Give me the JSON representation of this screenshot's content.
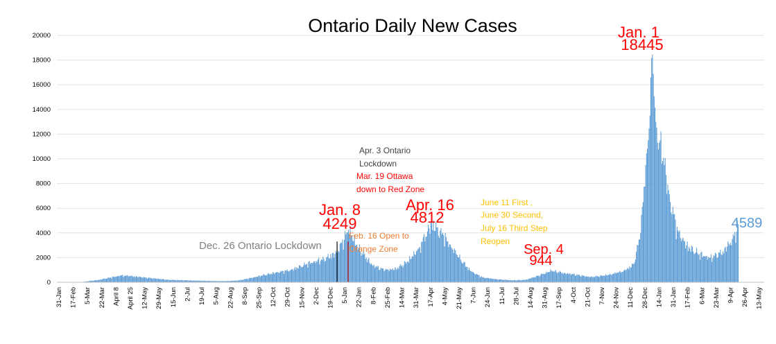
{
  "chart_data": {
    "type": "bar",
    "title": "Ontario Daily New Cases",
    "xlabel": "",
    "ylabel": "",
    "ylim": [
      0,
      20000
    ],
    "y_ticks": [
      0,
      2000,
      4000,
      6000,
      8000,
      10000,
      12000,
      14000,
      16000,
      18000,
      20000
    ],
    "x_tick_labels": [
      "31-Jan",
      "17-Feb",
      "5-Mar",
      "22-Mar",
      "April 8",
      "April 25",
      "12-May",
      "29-May",
      "15-Jun",
      "2-Jul",
      "19-Jul",
      "5-Aug",
      "22-Aug",
      "8-Sep",
      "25-Sep",
      "12-Oct",
      "29-Oct",
      "15-Nov",
      "2-Dec",
      "19-Dec",
      "5-Jan",
      "22-Jan",
      "8-Feb",
      "25-Feb",
      "14-Mar",
      "31-Mar",
      "17-Apr",
      "4-May",
      "21-May",
      "7-Jun",
      "24-Jun",
      "11-Jul",
      "28-Jul",
      "14-Aug",
      "31-Aug",
      "17-Sep",
      "4-Oct",
      "21-Oct",
      "7-Nov",
      "24-Nov",
      "11-Dec",
      "28-Dec",
      "14-Jan",
      "31-Jan",
      "17-Feb",
      "6-Mar",
      "23-Mar",
      "9-Apr",
      "26-Apr",
      "13-May"
    ],
    "x_start": "2020-01-31",
    "x_end": "2022-05-13",
    "color": "#5b9bd5",
    "grid": true,
    "anchors": [
      [
        "2020-01-31",
        0
      ],
      [
        "2020-03-01",
        30
      ],
      [
        "2020-03-20",
        200
      ],
      [
        "2020-04-15",
        550
      ],
      [
        "2020-04-25",
        520
      ],
      [
        "2020-05-15",
        380
      ],
      [
        "2020-06-10",
        200
      ],
      [
        "2020-07-15",
        130
      ],
      [
        "2020-08-15",
        90
      ],
      [
        "2020-09-01",
        150
      ],
      [
        "2020-09-15",
        350
      ],
      [
        "2020-10-01",
        600
      ],
      [
        "2020-10-15",
        800
      ],
      [
        "2020-11-01",
        1000
      ],
      [
        "2020-11-20",
        1500
      ],
      [
        "2020-12-10",
        1900
      ],
      [
        "2020-12-25",
        2400
      ],
      [
        "2021-01-08",
        4249
      ],
      [
        "2021-01-20",
        2800
      ],
      [
        "2021-02-05",
        1400
      ],
      [
        "2021-02-20",
        1000
      ],
      [
        "2021-03-05",
        1100
      ],
      [
        "2021-03-19",
        1700
      ],
      [
        "2021-04-01",
        2800
      ],
      [
        "2021-04-16",
        4812
      ],
      [
        "2021-04-30",
        3800
      ],
      [
        "2021-05-15",
        2300
      ],
      [
        "2021-06-01",
        900
      ],
      [
        "2021-06-15",
        400
      ],
      [
        "2021-07-01",
        250
      ],
      [
        "2021-07-20",
        160
      ],
      [
        "2021-08-05",
        200
      ],
      [
        "2021-08-20",
        550
      ],
      [
        "2021-09-04",
        944
      ],
      [
        "2021-09-20",
        750
      ],
      [
        "2021-10-05",
        600
      ],
      [
        "2021-10-20",
        430
      ],
      [
        "2021-11-05",
        550
      ],
      [
        "2021-11-20",
        750
      ],
      [
        "2021-12-01",
        1000
      ],
      [
        "2021-12-10",
        1500
      ],
      [
        "2021-12-18",
        4000
      ],
      [
        "2021-12-24",
        9500
      ],
      [
        "2021-12-29",
        13500
      ],
      [
        "2022-01-01",
        18445
      ],
      [
        "2022-01-05",
        13000
      ],
      [
        "2022-01-10",
        11500
      ],
      [
        "2022-01-15",
        9500
      ],
      [
        "2022-01-22",
        6500
      ],
      [
        "2022-01-31",
        4200
      ],
      [
        "2022-02-10",
        3000
      ],
      [
        "2022-02-25",
        2300
      ],
      [
        "2022-03-10",
        2000
      ],
      [
        "2022-03-25",
        2500
      ],
      [
        "2022-04-05",
        3500
      ],
      [
        "2022-04-12",
        4589
      ]
    ],
    "last_data_date": "2022-04-12"
  },
  "annotations": [
    {
      "text": "Jan. 1",
      "color": "#ff0000",
      "size": "large"
    },
    {
      "text": "18445",
      "color": "#ff0000",
      "size": "large"
    },
    {
      "text": "Jan. 8",
      "color": "#ff0000",
      "size": "large"
    },
    {
      "text": "4249",
      "color": "#ff0000",
      "size": "large"
    },
    {
      "text": "Apr. 16",
      "color": "#ff0000",
      "size": "large"
    },
    {
      "text": "4812",
      "color": "#ff0000",
      "size": "large"
    },
    {
      "text": "Sep. 4",
      "color": "#ff0000",
      "size": "large"
    },
    {
      "text": "944",
      "color": "#ff0000",
      "size": "large"
    },
    {
      "text": "4589",
      "color": "#5b9bd5",
      "size": "large"
    },
    {
      "text": "Dec. 26 Ontario Lockdown",
      "color": "#7f7f7f",
      "size": "medium"
    },
    {
      "text": "Apr. 3 Ontario",
      "color": "#404040",
      "size": "small"
    },
    {
      "text": "Lockdown",
      "color": "#404040",
      "size": "small"
    },
    {
      "text": "Mar. 19 Ottawa",
      "color": "#ff0000",
      "size": "small"
    },
    {
      "text": "down to Red Zone",
      "color": "#ff0000",
      "size": "small"
    },
    {
      "text": "Feb. 16 Open to",
      "color": "#ed7d31",
      "size": "small"
    },
    {
      "text": "Orange Zone",
      "color": "#ed7d31",
      "size": "small"
    },
    {
      "text": "June 11 First ,",
      "color": "#ffc000",
      "size": "small"
    },
    {
      "text": "June 30 Second,",
      "color": "#ffc000",
      "size": "small"
    },
    {
      "text": "July 16 Third Step",
      "color": "#ffc000",
      "size": "small"
    },
    {
      "text": "Reopen",
      "color": "#ffc000",
      "size": "small"
    }
  ],
  "markers": [
    {
      "date": "2020-12-26",
      "color": "#000000"
    },
    {
      "date": "2021-01-08",
      "color": "#c00000"
    }
  ]
}
